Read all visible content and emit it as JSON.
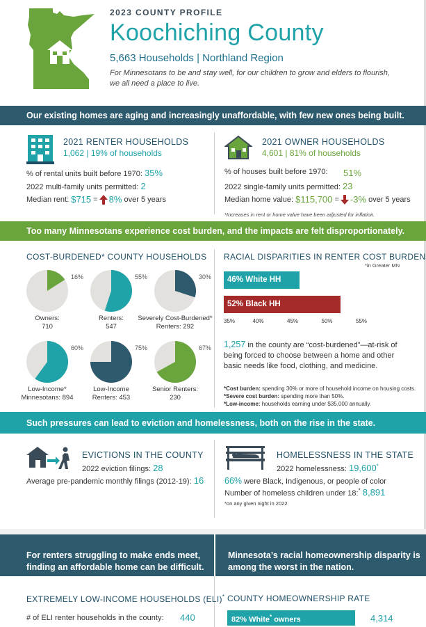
{
  "header": {
    "label": "2023 COUNTY PROFILE",
    "title": "Koochiching County",
    "subtitle": "5,663 Households | Northland Region",
    "tagline": "For Minnesotans to be and stay well, for our children to grow and elders to flourish, we all need a place to live."
  },
  "banner1": "Our existing homes are aging and increasingly unaffordable, with few new ones being built.",
  "renter": {
    "heading": "2021 RENTER HOUSEHOLDS",
    "count": "1,062",
    "share": "19% of households",
    "line1_label": "% of rental units built before 1970:",
    "line1_value": "35%",
    "line2_label": "2022 multi-family units permitted:",
    "line2_value": "2",
    "line3_label": "Median rent:",
    "line3_value": "$715",
    "line3_eq": "=",
    "line3_change": "8%",
    "line3_suffix": "over 5 years"
  },
  "owner": {
    "heading": "2021 OWNER HOUSEHOLDS",
    "count": "4,601",
    "share": "81% of households",
    "line1_label": "% of houses built before 1970:",
    "line1_value": "51%",
    "line2_label": "2022 single-family units permitted:",
    "line2_value": "23",
    "line3_label": "Median home value:",
    "line3_value": "$115,700",
    "line3_eq": "=",
    "line3_change": "-3%",
    "line3_suffix": "over 5 years",
    "footnote": "*Increases in rent or home value have been adjusted for inflation."
  },
  "banner2": "Too many Minnesotans experience cost burden, and the impacts are felt disproportionately.",
  "burden": {
    "heading": "COST-BURDENED* COUNTY HOUSEHOLDS",
    "pies": [
      {
        "pct": "16%",
        "value": 16,
        "label1": "Owners:",
        "label2": "710",
        "color": "#6aa43c"
      },
      {
        "pct": "55%",
        "value": 55,
        "label1": "Renters:",
        "label2": "547",
        "color": "#1fa2a8"
      },
      {
        "pct": "30%",
        "value": 30,
        "label1": "Severely Cost-Burdened*",
        "label2": "Renters: 292",
        "color": "#2e5a6e"
      },
      {
        "pct": "60%",
        "value": 60,
        "label1": "Low-Income*",
        "label2": "Minnesotans: 894",
        "color": "#1fa2a8"
      },
      {
        "pct": "75%",
        "value": 75,
        "label1": "Low-Income",
        "label2": "Renters: 453",
        "color": "#2e5a6e"
      },
      {
        "pct": "67%",
        "value": 67,
        "label1": "Senior Renters:",
        "label2": "230",
        "color": "#6aa43c"
      }
    ]
  },
  "disparity": {
    "heading": "RACIAL DISPARITIES IN RENTER COST BURDEN",
    "note": "*in Greater MN",
    "bars": [
      {
        "label": "46% White HH",
        "value": 46,
        "color": "#1fa2a8"
      },
      {
        "label": "52% Black HH",
        "value": 52,
        "color": "#a52a2a"
      }
    ],
    "ticks": [
      "35%",
      "40%",
      "45%",
      "50%",
      "55%"
    ],
    "xlim": [
      35,
      55
    ],
    "stat_value": "1,257",
    "stat_text": "in the county are “cost-burdened”—at-risk of being forced to choose between a home and other basic needs like food, clothing, and medicine.",
    "foot1_bold": "*Cost burden:",
    "foot1": "spending 30% or more of household income on housing costs.",
    "foot2_bold": "*Severe cost burden:",
    "foot2": "spending more than 50%.",
    "foot3_bold": "*Low-income:",
    "foot3": "households earning under $35,000 annually."
  },
  "banner3": "Such pressures can lead to eviction and homelessness, both on the rise in the state.",
  "evictions": {
    "heading": "EVICTIONS IN THE COUNTY",
    "line1_label": "2022 eviction filings:",
    "line1_value": "28",
    "line2_label": "Average pre-pandemic monthly filings (2012-19):",
    "line2_value": "16"
  },
  "homeless": {
    "heading": "HOMELESSNESS IN THE STATE",
    "line1_label": "2022 homelessness:",
    "line1_value": "19,600",
    "line1_sup": "*",
    "line2_value": "66%",
    "line2_text": "were Black, Indigenous, or people of color",
    "line3_label": "Number of homeless children under 18:",
    "line3_sup": "*",
    "line3_value": "8,891",
    "footnote": "*on any given night in 2022"
  },
  "bottom": {
    "left_box": "For renters struggling to make ends meet, finding an affordable home can be difficult.",
    "right_box": "Minnesota’s racial homeownership disparity is among the worst in the nation.",
    "eli_heading": "EXTREMELY LOW-INCOME HOUSEHOLDS (ELI)",
    "eli_sup": "*",
    "eli_label": "# of ELI renter households in the county:",
    "eli_value": "440",
    "own_heading": "COUNTY HOMEOWNERSHIP RATE",
    "own_bar_label": "82% White",
    "own_bar_sup": "*",
    "own_bar_suffix": "owners",
    "own_value": "4,314"
  }
}
